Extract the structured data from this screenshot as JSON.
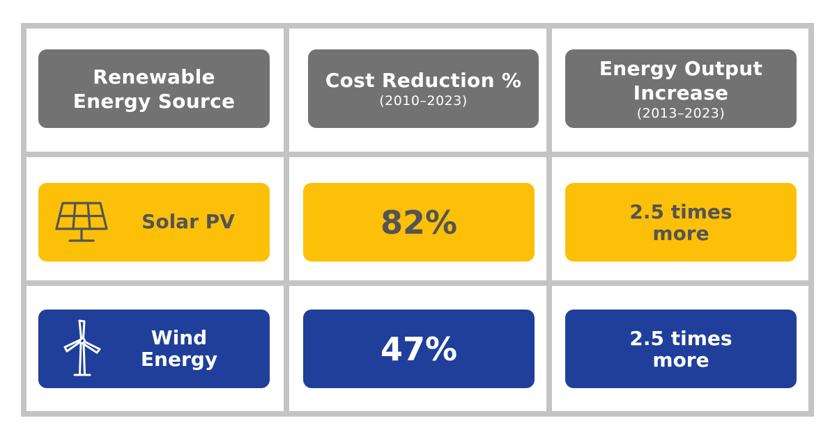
{
  "header": {
    "source": [
      "Renewable",
      "Energy Source"
    ],
    "cost": {
      "title": "Cost Reduction %",
      "period": "(2010–2023)"
    },
    "output": {
      "title": [
        "Energy Output",
        "Increase"
      ],
      "period": "(2013–2023)"
    }
  },
  "rows": [
    {
      "source": {
        "label": "Solar PV",
        "icon": "solar-panel-icon"
      },
      "cost_reduction": "82%",
      "output_increase": [
        "2.5 times",
        "more"
      ]
    },
    {
      "source": {
        "label": [
          "Wind",
          "Energy"
        ],
        "icon": "wind-turbine-icon"
      },
      "cost_reduction": "47%",
      "output_increase": [
        "2.5 times",
        "more"
      ]
    }
  ],
  "colors": {
    "grid_lines": "#c4c4c4",
    "header_fill": "#737272",
    "solar_fill": "#fdc008",
    "solar_text": "#545454",
    "wind_fill": "#1f3f9a",
    "header_text": "#ffffff"
  }
}
